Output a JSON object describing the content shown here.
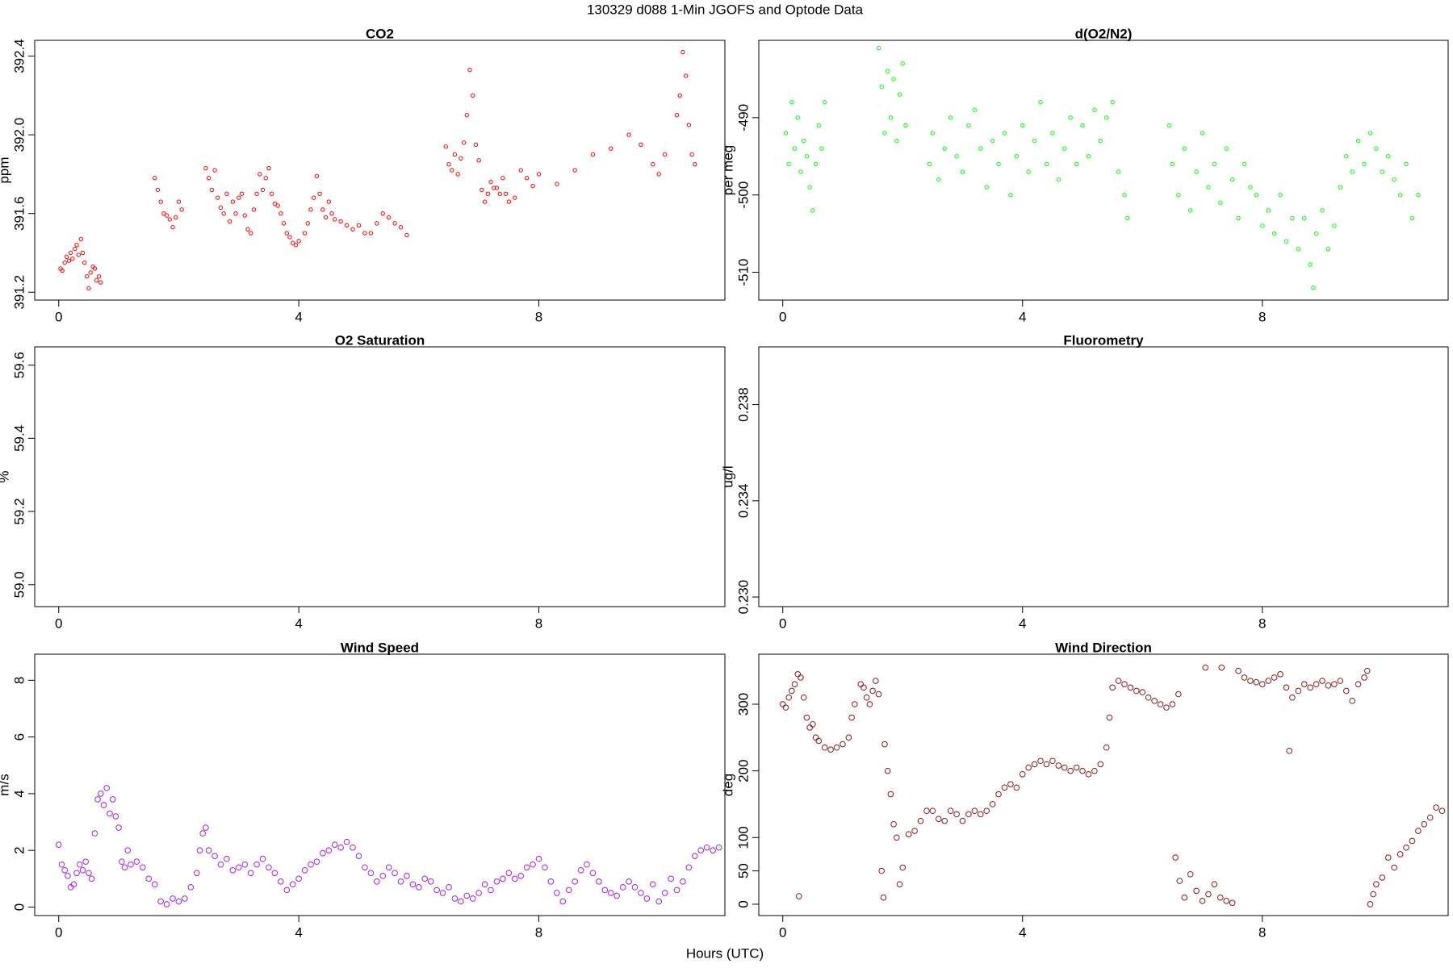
{
  "title": "130329   d088   1-Min  JGOFS and Optode Data",
  "xlabel": "Hours (UTC)",
  "chart_data": [
    {
      "type": "scatter",
      "title": "CO2",
      "ylabel": "ppm",
      "color": "#ff0000",
      "xlim": [
        -0.4,
        11.1
      ],
      "ylim": [
        391.16,
        392.48
      ],
      "xticks": [
        0,
        4,
        8
      ],
      "yticks": [
        391.2,
        391.6,
        {
          "value": 392,
          "label": "392.0"
        },
        392.4
      ],
      "x": [
        0.03,
        0.06,
        0.1,
        0.13,
        0.17,
        0.2,
        0.23,
        0.27,
        0.3,
        0.33,
        0.37,
        0.4,
        0.43,
        0.47,
        0.5,
        0.53,
        0.57,
        0.6,
        0.63,
        0.67,
        0.7,
        1.6,
        1.65,
        1.7,
        1.75,
        1.8,
        1.85,
        1.9,
        1.95,
        2.0,
        2.05,
        2.45,
        2.5,
        2.55,
        2.6,
        2.65,
        2.7,
        2.75,
        2.8,
        2.85,
        2.9,
        2.95,
        3.0,
        3.05,
        3.1,
        3.15,
        3.2,
        3.25,
        3.3,
        3.35,
        3.4,
        3.45,
        3.5,
        3.55,
        3.6,
        3.65,
        3.7,
        3.75,
        3.8,
        3.85,
        3.9,
        3.95,
        4.0,
        4.1,
        4.15,
        4.2,
        4.25,
        4.3,
        4.35,
        4.4,
        4.45,
        4.5,
        4.55,
        4.6,
        4.7,
        4.8,
        4.9,
        5.0,
        5.1,
        5.2,
        5.3,
        5.4,
        5.5,
        5.6,
        5.7,
        5.8,
        6.45,
        6.5,
        6.55,
        6.6,
        6.65,
        6.7,
        6.75,
        6.8,
        6.85,
        6.9,
        6.95,
        7.0,
        7.05,
        7.1,
        7.15,
        7.2,
        7.25,
        7.3,
        7.35,
        7.4,
        7.45,
        7.5,
        7.6,
        7.7,
        7.8,
        7.9,
        8.0,
        8.3,
        8.6,
        8.9,
        9.2,
        9.5,
        9.7,
        9.9,
        10.0,
        10.1,
        10.3,
        10.35,
        10.4,
        10.45,
        10.5,
        10.55,
        10.6
      ],
      "values": [
        391.32,
        391.31,
        391.35,
        391.38,
        391.36,
        391.4,
        391.37,
        391.42,
        391.44,
        391.39,
        391.47,
        391.4,
        391.35,
        391.28,
        391.22,
        391.3,
        391.33,
        391.32,
        391.26,
        391.28,
        391.25,
        391.78,
        391.72,
        391.66,
        391.6,
        391.59,
        391.57,
        391.53,
        391.58,
        391.66,
        391.62,
        391.83,
        391.78,
        391.72,
        391.82,
        391.68,
        391.63,
        391.6,
        391.7,
        391.56,
        391.66,
        391.6,
        391.68,
        391.7,
        391.59,
        391.52,
        391.5,
        391.62,
        391.7,
        391.8,
        391.72,
        391.78,
        391.83,
        391.7,
        391.65,
        391.64,
        391.6,
        391.55,
        391.5,
        391.48,
        391.45,
        391.44,
        391.46,
        391.5,
        391.55,
        391.62,
        391.68,
        391.79,
        391.7,
        391.62,
        391.58,
        391.66,
        391.6,
        391.57,
        391.56,
        391.54,
        391.52,
        391.54,
        391.5,
        391.5,
        391.55,
        391.6,
        391.58,
        391.55,
        391.53,
        391.49,
        391.94,
        391.85,
        391.82,
        391.9,
        391.8,
        391.88,
        391.96,
        392.1,
        392.33,
        392.2,
        391.95,
        391.87,
        391.72,
        391.66,
        391.7,
        391.76,
        391.73,
        391.73,
        391.7,
        391.78,
        391.7,
        391.66,
        391.68,
        391.82,
        391.78,
        391.74,
        391.8,
        391.75,
        391.82,
        391.9,
        391.93,
        392.0,
        391.95,
        391.85,
        391.8,
        391.9,
        392.1,
        392.2,
        392.42,
        392.3,
        392.05,
        391.9,
        391.85
      ]
    },
    {
      "type": "scatter",
      "title": "d(O2/N2)",
      "ylabel": "per meg",
      "color": "#00ff00",
      "xlim": [
        -0.4,
        11.1
      ],
      "ylim": [
        -513.6,
        -480
      ],
      "xticks": [
        0,
        4,
        8
      ],
      "yticks": [
        -510,
        -500,
        -490
      ],
      "x": [
        0.05,
        0.1,
        0.15,
        0.2,
        0.25,
        0.3,
        0.35,
        0.4,
        0.45,
        0.5,
        0.55,
        0.6,
        0.65,
        0.7,
        1.6,
        1.65,
        1.7,
        1.75,
        1.8,
        1.85,
        1.9,
        1.95,
        2.0,
        2.05,
        2.45,
        2.5,
        2.6,
        2.7,
        2.8,
        2.9,
        3.0,
        3.1,
        3.2,
        3.3,
        3.4,
        3.5,
        3.6,
        3.7,
        3.8,
        3.9,
        4.0,
        4.1,
        4.2,
        4.3,
        4.4,
        4.5,
        4.6,
        4.7,
        4.8,
        4.9,
        5.0,
        5.1,
        5.2,
        5.3,
        5.4,
        5.5,
        5.6,
        5.7,
        5.75,
        6.45,
        6.5,
        6.6,
        6.7,
        6.8,
        6.9,
        7.0,
        7.1,
        7.2,
        7.3,
        7.4,
        7.5,
        7.6,
        7.7,
        7.8,
        7.9,
        8.0,
        8.1,
        8.2,
        8.3,
        8.4,
        8.5,
        8.6,
        8.7,
        8.8,
        8.85,
        8.9,
        9.0,
        9.1,
        9.2,
        9.3,
        9.4,
        9.5,
        9.6,
        9.7,
        9.8,
        9.9,
        10.0,
        10.1,
        10.2,
        10.3,
        10.4,
        10.5,
        10.6
      ],
      "values": [
        -492,
        -496,
        -488,
        -494,
        -490,
        -497,
        -493,
        -495,
        -499,
        -502,
        -496,
        -491,
        -494,
        -488,
        -481,
        -486,
        -492,
        -484,
        -490,
        -485,
        -493,
        -487,
        -483,
        -491,
        -496,
        -492,
        -498,
        -494,
        -490,
        -495,
        -497,
        -491,
        -489,
        -494,
        -499,
        -493,
        -496,
        -492,
        -500,
        -495,
        -491,
        -497,
        -493,
        -488,
        -496,
        -492,
        -498,
        -494,
        -490,
        -496,
        -491,
        -495,
        -489,
        -493,
        -490,
        -488,
        -497,
        -500,
        -503,
        -491,
        -496,
        -500,
        -494,
        -502,
        -497,
        -492,
        -499,
        -496,
        -501,
        -494,
        -498,
        -503,
        -496,
        -499,
        -500,
        -504,
        -502,
        -505,
        -500,
        -506,
        -503,
        -507,
        -503,
        -509,
        -512,
        -505,
        -502,
        -507,
        -504,
        -499,
        -495,
        -497,
        -493,
        -496,
        -492,
        -494,
        -497,
        -495,
        -498,
        -500,
        -496,
        -503,
        -500
      ]
    },
    {
      "type": "scatter",
      "title": "O2 Saturation",
      "ylabel": "%",
      "color": "#000000",
      "xlim": [
        -0.4,
        11.1
      ],
      "ylim": [
        58.94,
        59.65
      ],
      "xticks": [
        0,
        4,
        8
      ],
      "yticks": [
        {
          "value": 59,
          "label": "59.0"
        },
        59.2,
        59.4,
        59.6
      ],
      "x": [],
      "values": []
    },
    {
      "type": "scatter",
      "title": "Fluorometry",
      "ylabel": "ug/l",
      "color": "#000000",
      "xlim": [
        -0.4,
        11.1
      ],
      "ylim": [
        0.2296,
        0.2404
      ],
      "xticks": [
        0,
        4,
        8
      ],
      "yticks": [
        {
          "value": 0.23,
          "label": "0.230"
        },
        0.234,
        0.238
      ],
      "x": [],
      "values": []
    },
    {
      "type": "scatter",
      "title": "Wind Speed",
      "ylabel": "m/s",
      "color": "#a020f0",
      "xlim": [
        -0.4,
        11.1
      ],
      "ylim": [
        -0.3,
        8.92
      ],
      "xticks": [
        0,
        4,
        8
      ],
      "yticks": [
        0,
        2,
        4,
        6,
        8
      ],
      "x": [
        0,
        0.05,
        0.1,
        0.15,
        0.2,
        0.25,
        0.3,
        0.35,
        0.4,
        0.45,
        0.5,
        0.55,
        0.6,
        0.65,
        0.7,
        0.75,
        0.8,
        0.85,
        0.9,
        0.95,
        1.0,
        1.05,
        1.1,
        1.15,
        1.2,
        1.3,
        1.4,
        1.5,
        1.6,
        1.7,
        1.8,
        1.9,
        2.0,
        2.1,
        2.2,
        2.3,
        2.35,
        2.4,
        2.45,
        2.5,
        2.6,
        2.7,
        2.8,
        2.9,
        3.0,
        3.1,
        3.2,
        3.3,
        3.4,
        3.5,
        3.6,
        3.7,
        3.8,
        3.9,
        4.0,
        4.1,
        4.2,
        4.3,
        4.4,
        4.5,
        4.6,
        4.7,
        4.8,
        4.9,
        5.0,
        5.1,
        5.2,
        5.3,
        5.4,
        5.5,
        5.6,
        5.7,
        5.8,
        5.9,
        6.0,
        6.1,
        6.2,
        6.3,
        6.4,
        6.5,
        6.6,
        6.7,
        6.8,
        6.9,
        7.0,
        7.1,
        7.2,
        7.3,
        7.4,
        7.5,
        7.6,
        7.7,
        7.8,
        7.9,
        8.0,
        8.1,
        8.2,
        8.3,
        8.4,
        8.5,
        8.6,
        8.7,
        8.8,
        8.9,
        9.0,
        9.1,
        9.2,
        9.3,
        9.4,
        9.5,
        9.6,
        9.7,
        9.8,
        9.9,
        10.0,
        10.1,
        10.2,
        10.3,
        10.4,
        10.5,
        10.6,
        10.7,
        10.8,
        10.9,
        11.0
      ],
      "values": [
        2.2,
        1.5,
        1.3,
        1.1,
        0.7,
        0.8,
        1.2,
        1.5,
        1.3,
        1.6,
        1.2,
        1.0,
        2.6,
        3.8,
        4.0,
        3.6,
        4.2,
        3.3,
        3.8,
        3.2,
        2.8,
        1.6,
        1.4,
        2.0,
        1.5,
        1.6,
        1.4,
        1.0,
        0.8,
        0.2,
        0.1,
        0.3,
        0.2,
        0.3,
        0.7,
        1.2,
        2.0,
        2.6,
        2.8,
        2.0,
        1.8,
        1.5,
        1.7,
        1.3,
        1.4,
        1.5,
        1.2,
        1.5,
        1.7,
        1.4,
        1.2,
        0.9,
        0.6,
        0.8,
        1.0,
        1.3,
        1.5,
        1.6,
        1.9,
        2.0,
        2.2,
        2.1,
        2.3,
        2.1,
        1.8,
        1.4,
        1.2,
        0.9,
        1.1,
        1.4,
        1.2,
        0.9,
        1.1,
        0.8,
        0.7,
        1.0,
        0.9,
        0.6,
        0.5,
        0.7,
        0.3,
        0.2,
        0.4,
        0.3,
        0.5,
        0.8,
        0.6,
        0.9,
        1.0,
        1.2,
        1.0,
        1.1,
        1.4,
        1.5,
        1.7,
        1.4,
        0.9,
        0.5,
        0.2,
        0.6,
        0.9,
        1.3,
        1.5,
        1.2,
        0.9,
        0.6,
        0.5,
        0.4,
        0.7,
        0.9,
        0.7,
        0.5,
        0.3,
        0.8,
        0.2,
        0.5,
        1.0,
        0.6,
        0.9,
        1.4,
        1.8,
        2.0,
        2.1,
        2.0,
        2.1
      ]
    },
    {
      "type": "scatter",
      "title": "Wind Direction",
      "ylabel": "deg",
      "color": "#8b1a1a",
      "xlim": [
        -0.4,
        11.1
      ],
      "ylim": [
        -17,
        375
      ],
      "xticks": [
        0,
        4,
        8
      ],
      "yticks": [
        0,
        50,
        100,
        200,
        300
      ],
      "x": [
        0,
        0.05,
        0.1,
        0.15,
        0.2,
        0.25,
        0.3,
        0.35,
        0.4,
        0.45,
        0.5,
        0.55,
        0.6,
        0.7,
        0.8,
        0.9,
        1.0,
        1.1,
        1.15,
        1.2,
        1.3,
        1.35,
        1.4,
        1.45,
        1.5,
        1.55,
        1.6,
        0.27,
        1.65,
        1.68,
        1.7,
        1.75,
        1.8,
        1.85,
        1.9,
        1.95,
        2.0,
        2.1,
        2.2,
        2.3,
        2.4,
        2.5,
        2.6,
        2.7,
        2.8,
        2.9,
        3.0,
        3.1,
        3.2,
        3.3,
        3.4,
        3.5,
        3.6,
        3.7,
        3.8,
        3.9,
        4.0,
        4.1,
        4.2,
        4.3,
        4.4,
        4.5,
        4.6,
        4.7,
        4.8,
        4.9,
        5.0,
        5.1,
        5.2,
        5.3,
        5.4,
        5.45,
        5.5,
        5.6,
        5.7,
        5.8,
        5.9,
        6.0,
        6.1,
        6.2,
        6.3,
        6.4,
        6.5,
        6.6,
        6.55,
        6.62,
        6.7,
        6.8,
        6.9,
        7.0,
        7.1,
        7.2,
        7.3,
        7.4,
        7.5,
        7.05,
        7.32,
        7.6,
        7.7,
        7.8,
        7.9,
        8.0,
        8.1,
        8.2,
        8.3,
        8.4,
        8.45,
        8.5,
        8.6,
        8.7,
        8.8,
        8.9,
        9.0,
        9.1,
        9.2,
        9.3,
        9.4,
        9.5,
        9.6,
        9.7,
        9.75,
        9.8,
        9.85,
        9.9,
        10.0,
        10.1,
        10.2,
        10.3,
        10.4,
        10.5,
        10.6,
        10.7,
        10.8,
        10.9,
        11.0
      ],
      "values": [
        300,
        295,
        310,
        320,
        330,
        345,
        340,
        310,
        280,
        265,
        270,
        250,
        245,
        235,
        232,
        235,
        240,
        250,
        280,
        300,
        330,
        325,
        310,
        300,
        320,
        335,
        315,
        12,
        50,
        10,
        240,
        200,
        165,
        120,
        100,
        30,
        55,
        105,
        110,
        125,
        140,
        140,
        128,
        125,
        140,
        135,
        125,
        135,
        140,
        135,
        140,
        150,
        165,
        175,
        180,
        175,
        195,
        205,
        210,
        215,
        210,
        215,
        208,
        205,
        200,
        205,
        200,
        195,
        200,
        210,
        235,
        280,
        325,
        335,
        330,
        325,
        320,
        318,
        310,
        305,
        300,
        295,
        300,
        315,
        70,
        35,
        10,
        45,
        20,
        5,
        15,
        30,
        10,
        5,
        2,
        355,
        355,
        350,
        340,
        335,
        333,
        330,
        335,
        340,
        345,
        325,
        230,
        310,
        320,
        330,
        325,
        330,
        335,
        328,
        330,
        335,
        320,
        305,
        330,
        340,
        350,
        0,
        15,
        30,
        40,
        70,
        55,
        75,
        85,
        95,
        110,
        120,
        130,
        145,
        140
      ]
    }
  ]
}
